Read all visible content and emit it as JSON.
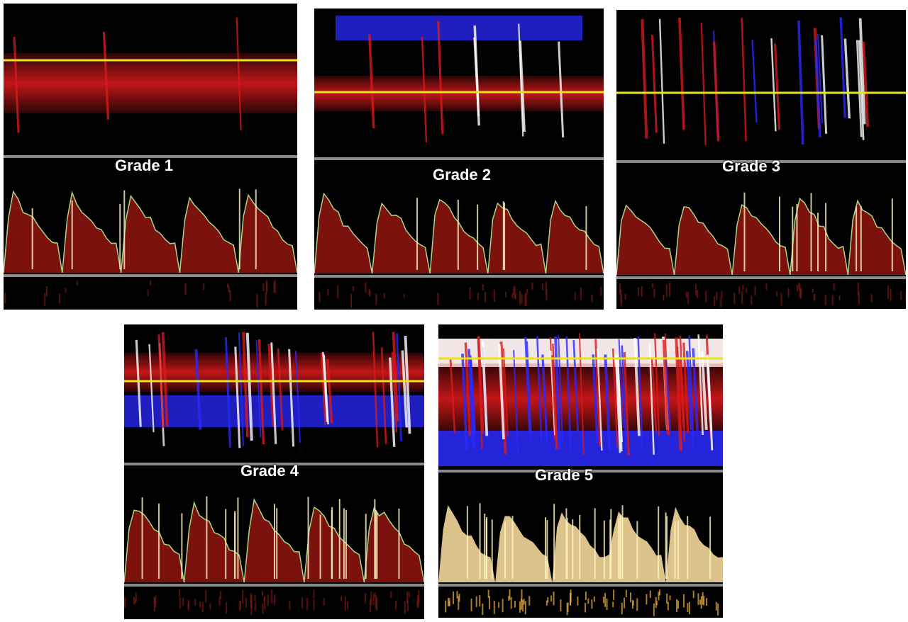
{
  "panels": [
    {
      "label": "Grade 1",
      "band": "red",
      "peaks": 5,
      "intensity": 1
    },
    {
      "label": "Grade 2",
      "band": "red-blue-top",
      "peaks": 5,
      "intensity": 1
    },
    {
      "label": "Grade 3",
      "band": "streaks",
      "peaks": 5,
      "intensity": 2
    },
    {
      "label": "Grade 4",
      "band": "red-blue",
      "peaks": 5,
      "intensity": 3
    },
    {
      "label": "Grade 5",
      "band": "saturated",
      "peaks": 5,
      "intensity": 4
    }
  ],
  "colors": {
    "background": "#000000",
    "doppler_red": "#d8191b",
    "doppler_blue": "#2a2aff",
    "baseline_yellow": "#e8e31a",
    "envelope_green": "#a8d58a",
    "separator_gray": "#8a8a8a"
  }
}
